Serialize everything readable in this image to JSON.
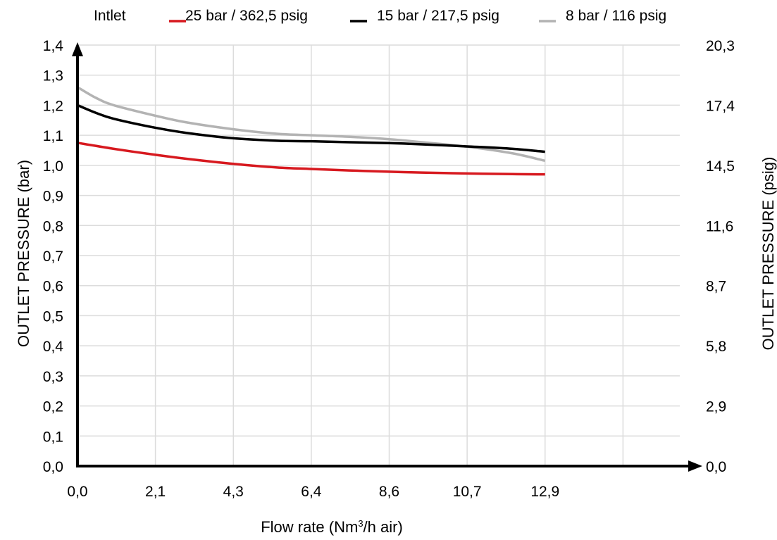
{
  "chart_data": {
    "type": "line",
    "legend": {
      "title": "Intlet",
      "placement": "top"
    },
    "xlabel": {
      "text": "Flow rate (Nm",
      "sup": "3",
      "suffix": "/h air)"
    },
    "ylabel": "OUTLET PRESSURE (bar)",
    "ylabel_right": "OUTLET PRESSURE (psig)",
    "x_ticks": [
      "0,0",
      "2,1",
      "4,3",
      "6,4",
      "8,6",
      "10,7",
      "12,9"
    ],
    "x_tick_values": [
      0,
      2.15,
      4.3,
      6.45,
      8.6,
      10.75,
      12.9
    ],
    "xlim": [
      0,
      17.2
    ],
    "y_ticks": [
      "0,0",
      "0,1",
      "0,2",
      "0,3",
      "0,4",
      "0,5",
      "0,6",
      "0,7",
      "0,8",
      "0,9",
      "1,0",
      "1,1",
      "1,2",
      "1,3",
      "1,4"
    ],
    "y_tick_values": [
      0,
      0.1,
      0.2,
      0.3,
      0.4,
      0.5,
      0.6,
      0.7,
      0.8,
      0.9,
      1.0,
      1.1,
      1.2,
      1.3,
      1.4
    ],
    "ylim": [
      0,
      1.4
    ],
    "y2_ticks": [
      "0,0",
      "2,9",
      "5,8",
      "8,7",
      "11,6",
      "14,5",
      "17,4",
      "20,3"
    ],
    "y2_tick_values": [
      0,
      0.2,
      0.4,
      0.6,
      0.8,
      1.0,
      1.2,
      1.4
    ],
    "grid": true,
    "series": [
      {
        "name": "25 bar / 362,5 psig",
        "color": "#d7191f",
        "x": [
          0,
          1,
          2.15,
          3,
          4.3,
          5.5,
          6.45,
          7.5,
          8.6,
          9.5,
          10.75,
          12,
          12.9
        ],
        "y": [
          1.075,
          1.055,
          1.035,
          1.022,
          1.005,
          0.993,
          0.988,
          0.983,
          0.979,
          0.976,
          0.973,
          0.971,
          0.97
        ]
      },
      {
        "name": "15 bar / 217,5 psig",
        "color": "#000000",
        "x": [
          0,
          0.5,
          1,
          2.15,
          3,
          4.3,
          5.5,
          6.45,
          7.5,
          8.6,
          9.5,
          10.75,
          12,
          12.9
        ],
        "y": [
          1.2,
          1.175,
          1.155,
          1.125,
          1.108,
          1.09,
          1.082,
          1.08,
          1.077,
          1.074,
          1.07,
          1.063,
          1.055,
          1.045
        ]
      },
      {
        "name": "8 bar / 116 psig",
        "color": "#b3b3b3",
        "x": [
          0,
          0.5,
          1,
          2.15,
          3,
          4.3,
          5.5,
          6.45,
          7.5,
          8.6,
          9.5,
          10.75,
          12,
          12.9
        ],
        "y": [
          1.26,
          1.225,
          1.2,
          1.165,
          1.143,
          1.12,
          1.105,
          1.1,
          1.095,
          1.087,
          1.077,
          1.062,
          1.04,
          1.015
        ]
      }
    ]
  }
}
